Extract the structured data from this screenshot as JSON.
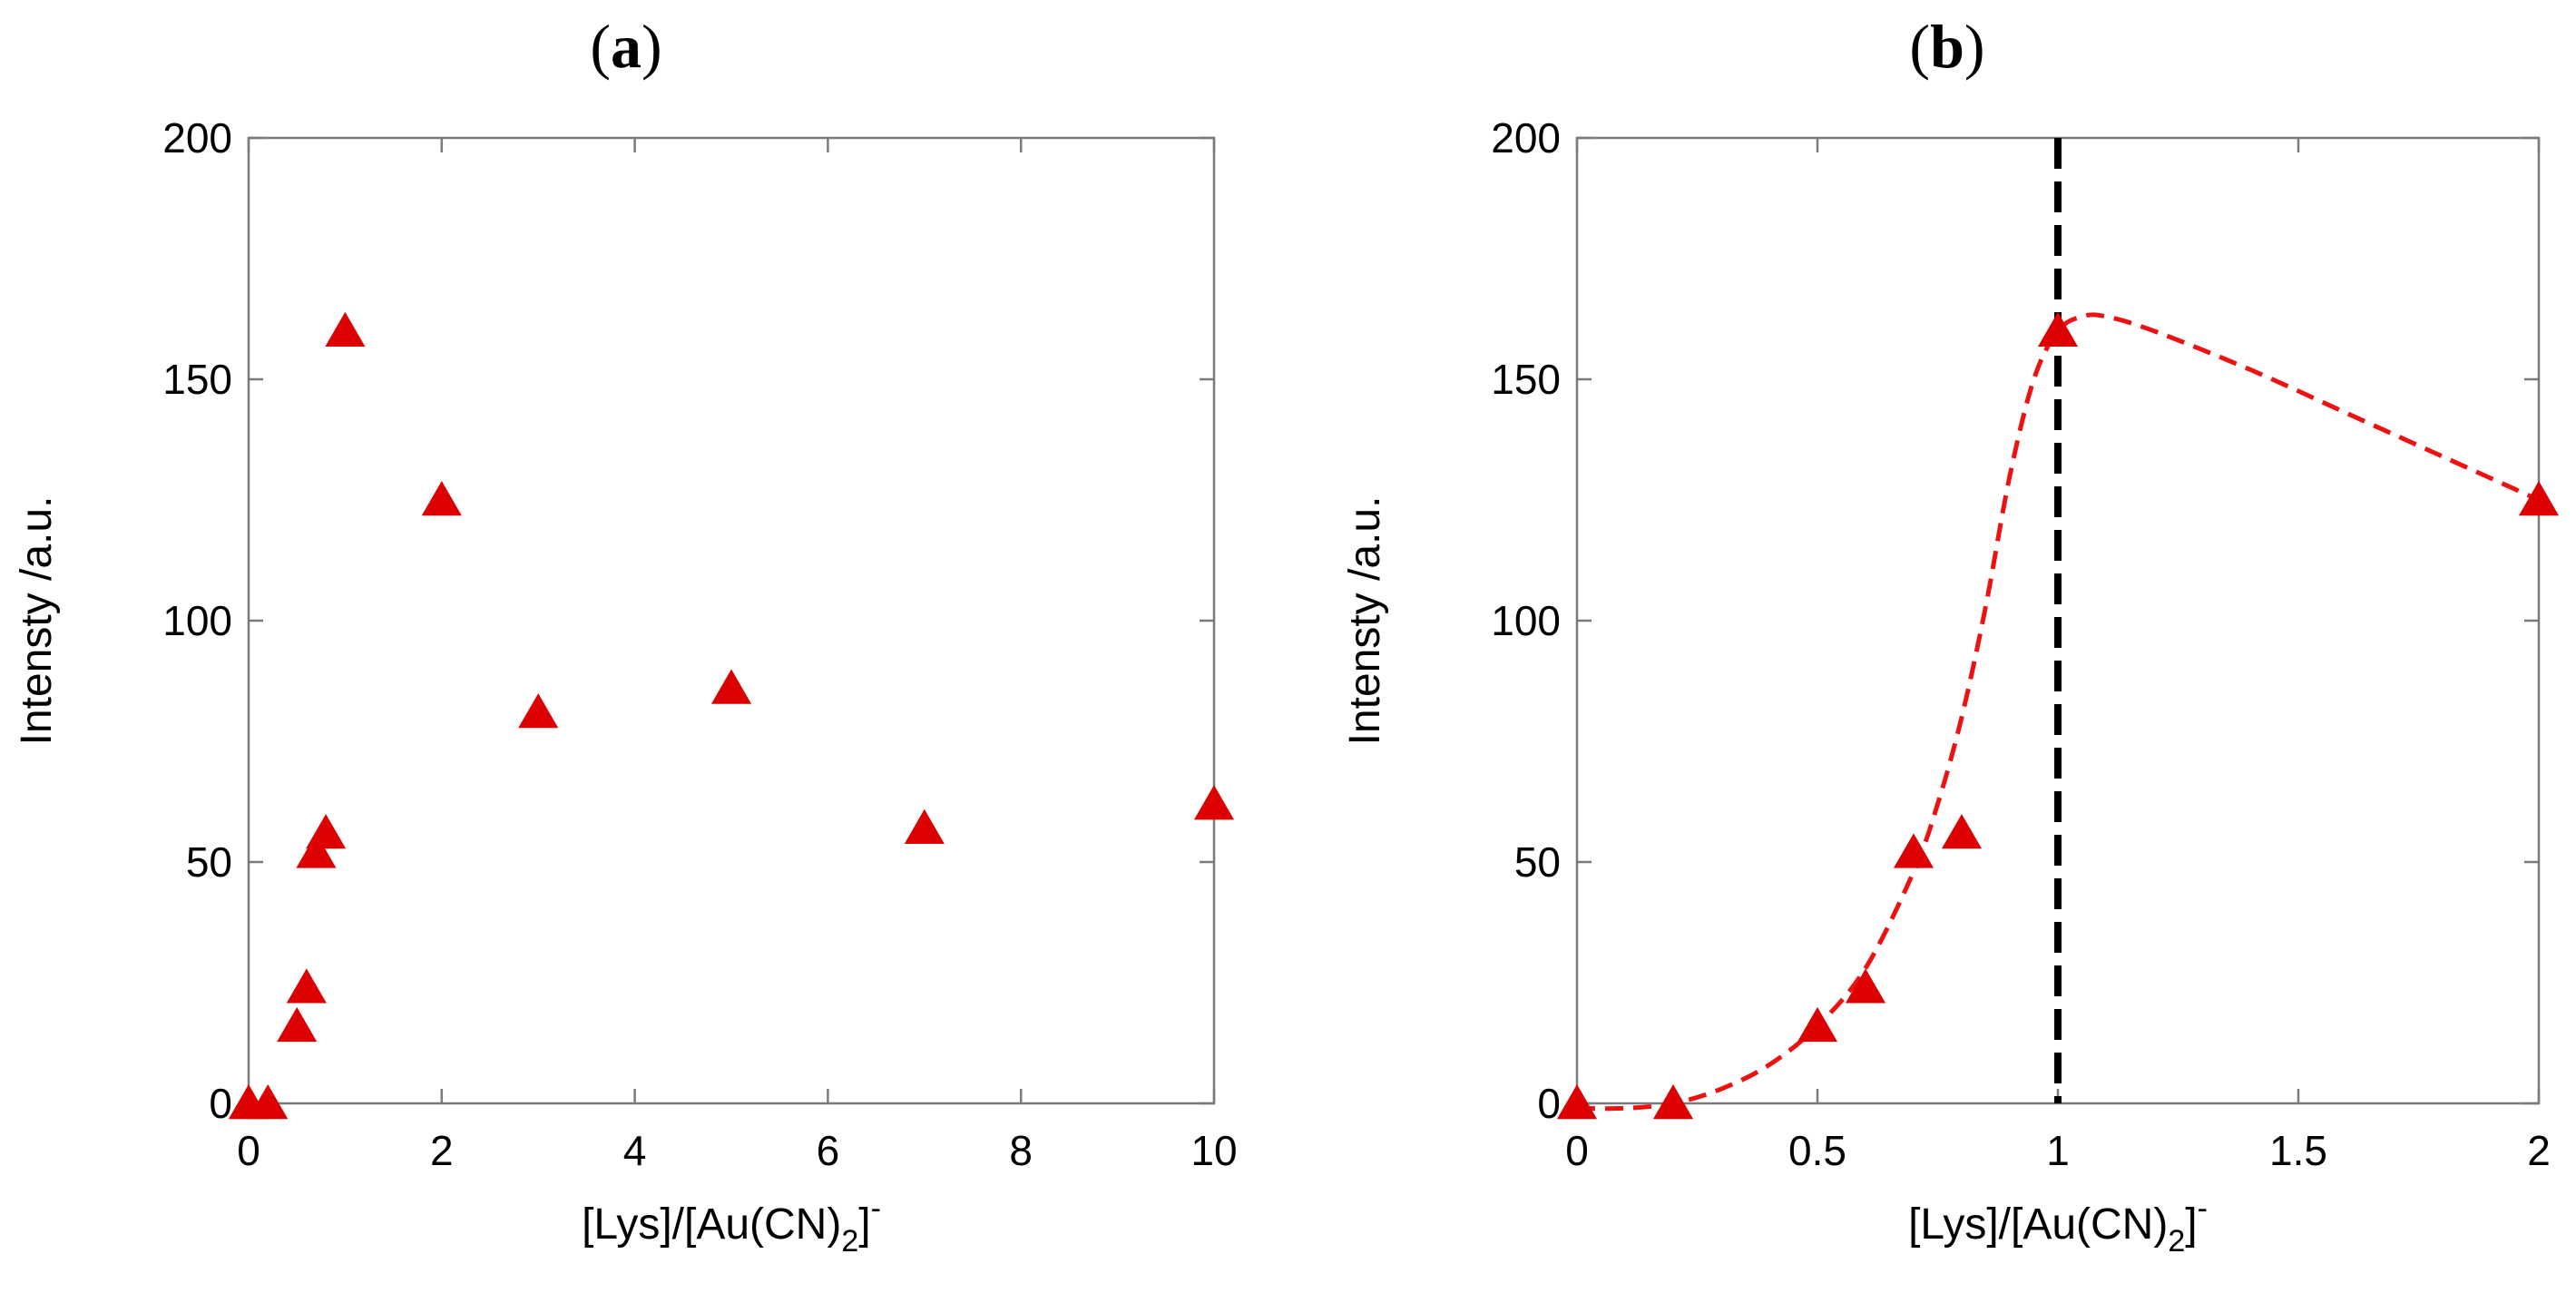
{
  "chart_data": [
    {
      "type": "scatter",
      "panel_label": "a",
      "xlabel": "[Lys]/[Au(CN)",
      "xlabel_sub": "2",
      "xlabel_tail": "]",
      "xlabel_sup": "-",
      "ylabel": "Intensty /a.u.",
      "xlim": [
        0,
        10
      ],
      "ylim": [
        0,
        200
      ],
      "xticks": [
        0,
        2,
        4,
        6,
        8,
        10
      ],
      "yticks": [
        0,
        50,
        100,
        150,
        200
      ],
      "x": [
        0,
        0.2,
        0.5,
        0.6,
        0.7,
        0.8,
        1,
        2,
        3,
        5,
        7,
        10
      ],
      "y": [
        0,
        0,
        16,
        24,
        52,
        56,
        160,
        125,
        81,
        86,
        57,
        62
      ],
      "marker_color": "#dd0000"
    },
    {
      "type": "scatter",
      "panel_label": "b",
      "xlabel": "[Lys]/[Au(CN)",
      "xlabel_sub": "2",
      "xlabel_tail": "]",
      "xlabel_sup": "-",
      "ylabel": "Intensty /a.u.",
      "xlim": [
        0,
        2
      ],
      "ylim": [
        0,
        200
      ],
      "xticks": [
        0,
        0.5,
        1,
        1.5,
        2
      ],
      "yticks": [
        0,
        50,
        100,
        150,
        200
      ],
      "x": [
        0,
        0.2,
        0.5,
        0.6,
        0.7,
        0.8,
        1,
        2
      ],
      "y": [
        0,
        0,
        16,
        24,
        52,
        56,
        160,
        125
      ],
      "marker_color": "#dd0000",
      "fit_curve": {
        "style": "dashed",
        "color": "#ee1111",
        "x": [
          0,
          0.1,
          0.2,
          0.3,
          0.4,
          0.5,
          0.6,
          0.7,
          0.75,
          0.8,
          0.85,
          0.9,
          0.95,
          1.0,
          1.05,
          1.1,
          1.2,
          1.4,
          1.6,
          1.8,
          2.0
        ],
        "y": [
          -1,
          -1,
          0,
          3,
          8,
          16,
          28,
          48,
          62,
          80,
          103,
          130,
          150,
          160,
          163,
          163,
          160,
          152,
          143,
          134,
          125
        ]
      },
      "reference_line": {
        "x": 1,
        "style": "dashed",
        "color": "#000000"
      }
    }
  ]
}
